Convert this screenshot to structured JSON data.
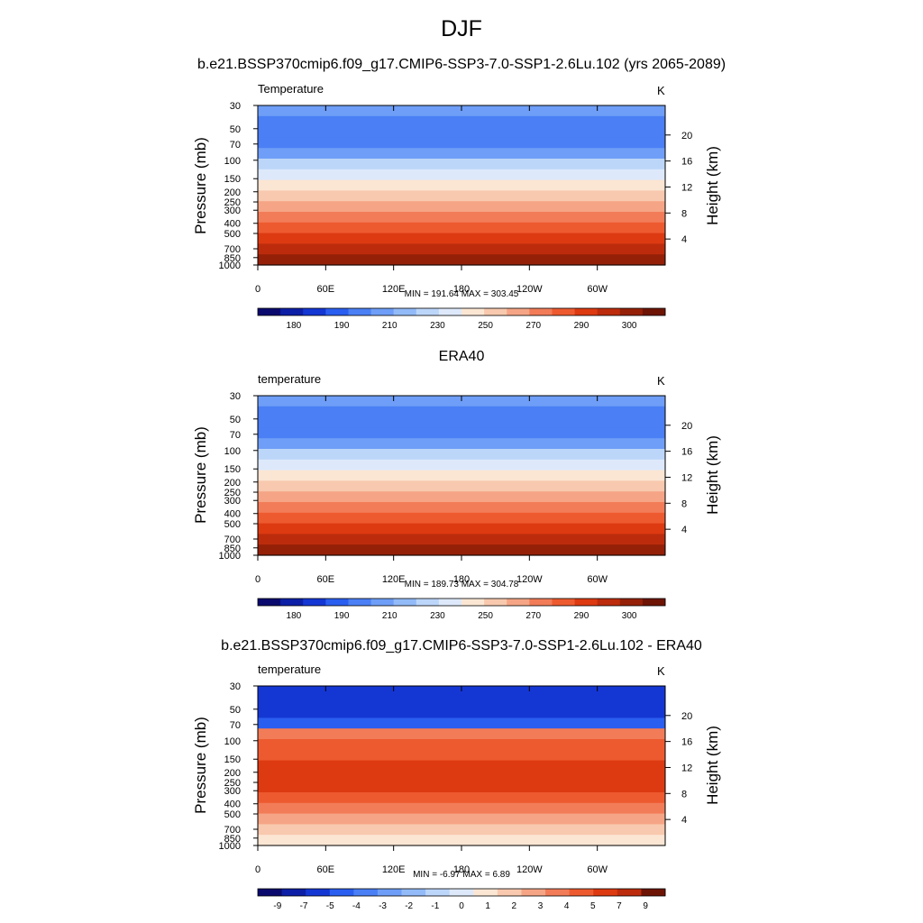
{
  "title": "DJF",
  "chart_data": [
    {
      "type": "heatmap",
      "title": "b.e21.BSSP370cmip6.f09_g17.CMIP6-SSP3-7.0-SSP1-2.6Lu.102 (yrs 2065-2089)",
      "variable_label": "Temperature",
      "units": "K",
      "ylabel": "Pressure (mb)",
      "ylabel_right": "Height (km)",
      "x_ticks": [
        "0",
        "60E",
        "120E",
        "180",
        "120W",
        "60W"
      ],
      "y_ticks": [
        "30",
        "50",
        "70",
        "100",
        "150",
        "200",
        "250",
        "300",
        "400",
        "500",
        "700",
        "850",
        "1000"
      ],
      "height_ticks": [
        "20",
        "16",
        "12",
        "8",
        "4"
      ],
      "min": "191.64",
      "max": "303.45",
      "stats_text": "MIN = 191.64  MAX = 303.45",
      "colorbar_labels": [
        "180",
        "190",
        "210",
        "230",
        "250",
        "270",
        "290",
        "300"
      ],
      "colors": [
        "#0a0a6e",
        "#0d1fa6",
        "#1437d4",
        "#2a5ef0",
        "#4a7ff5",
        "#6e9ef7",
        "#93bbf8",
        "#bcd6fa",
        "#dde9fb",
        "#fbe6d3",
        "#f8c9ae",
        "#f5a585",
        "#f27c58",
        "#ee5a2f",
        "#dd3a12",
        "#bc2c0c",
        "#952008",
        "#6e1405"
      ],
      "profile_levels": [
        5,
        4,
        4,
        4,
        5,
        7,
        8,
        9,
        10,
        11,
        12,
        13,
        14,
        15,
        16
      ]
    },
    {
      "type": "heatmap",
      "title": "ERA40",
      "variable_label": "temperature",
      "units": "K",
      "ylabel": "Pressure (mb)",
      "ylabel_right": "Height (km)",
      "x_ticks": [
        "0",
        "60E",
        "120E",
        "180",
        "120W",
        "60W"
      ],
      "y_ticks": [
        "30",
        "50",
        "70",
        "100",
        "150",
        "200",
        "250",
        "300",
        "400",
        "500",
        "700",
        "850",
        "1000"
      ],
      "height_ticks": [
        "20",
        "16",
        "12",
        "8",
        "4"
      ],
      "min": "189.73",
      "max": "304.78",
      "stats_text": "MIN = 189.73  MAX = 304.78",
      "colorbar_labels": [
        "180",
        "190",
        "210",
        "230",
        "250",
        "270",
        "290",
        "300"
      ],
      "colors": [
        "#0a0a6e",
        "#0d1fa6",
        "#1437d4",
        "#2a5ef0",
        "#4a7ff5",
        "#6e9ef7",
        "#93bbf8",
        "#bcd6fa",
        "#dde9fb",
        "#fbe6d3",
        "#f8c9ae",
        "#f5a585",
        "#f27c58",
        "#ee5a2f",
        "#dd3a12",
        "#bc2c0c",
        "#952008",
        "#6e1405"
      ],
      "profile_levels": [
        5,
        4,
        4,
        4,
        5,
        7,
        8,
        9,
        10,
        11,
        12,
        13,
        14,
        15,
        16
      ]
    },
    {
      "type": "heatmap",
      "title": "b.e21.BSSP370cmip6.f09_g17.CMIP6-SSP3-7.0-SSP1-2.6Lu.102 - ERA40",
      "variable_label": "temperature",
      "units": "K",
      "ylabel": "Pressure (mb)",
      "ylabel_right": "Height (km)",
      "x_ticks": [
        "0",
        "60E",
        "120E",
        "180",
        "120W",
        "60W"
      ],
      "y_ticks": [
        "30",
        "50",
        "70",
        "100",
        "150",
        "200",
        "250",
        "300",
        "400",
        "500",
        "700",
        "850",
        "1000"
      ],
      "height_ticks": [
        "20",
        "16",
        "12",
        "8",
        "4"
      ],
      "min": "-6.97",
      "max": "6.89",
      "stats_text": "MIN =  -6.97  MAX =   6.89",
      "colorbar_labels": [
        "-9",
        "-7",
        "-5",
        "-4",
        "-3",
        "-2",
        "-1",
        "0",
        "1",
        "2",
        "3",
        "4",
        "5",
        "7",
        "9"
      ],
      "colors": [
        "#0a0a6e",
        "#0d1fa6",
        "#1437d4",
        "#2a5ef0",
        "#4a7ff5",
        "#6e9ef7",
        "#93bbf8",
        "#bcd6fa",
        "#dde9fb",
        "#fbe6d3",
        "#f8c9ae",
        "#f5a585",
        "#f27c58",
        "#ee5a2f",
        "#dd3a12",
        "#bc2c0c",
        "#6e1405"
      ],
      "profile_levels": [
        2,
        2,
        2,
        3,
        12,
        13,
        13,
        14,
        14,
        14,
        13,
        12,
        11,
        10,
        9
      ]
    }
  ]
}
